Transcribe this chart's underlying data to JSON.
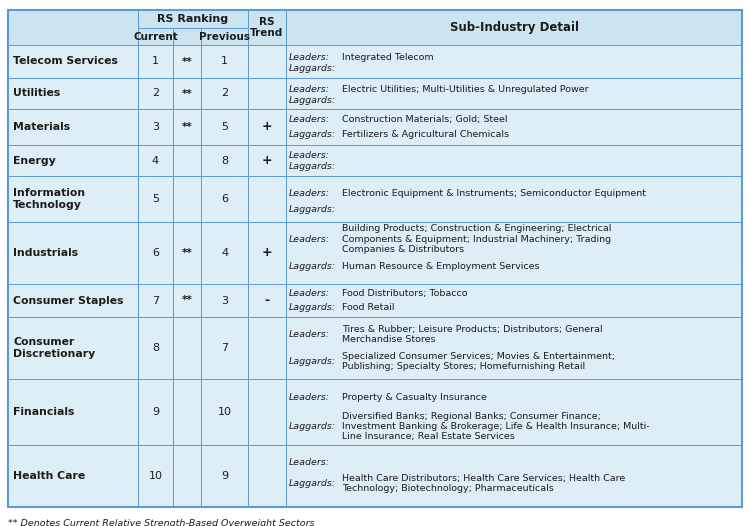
{
  "footer": "** Denotes Current Relative Strength-Based Overweight Sectors",
  "header_bg": "#cce4f0",
  "row_bg": "#ddeef7",
  "border_color": "#5b9bd5",
  "rows": [
    {
      "sector": "Telecom Services",
      "current": "1",
      "stars": "**",
      "previous": "1",
      "trend": "",
      "leaders": "Integrated Telecom",
      "laggards": ""
    },
    {
      "sector": "Utilities",
      "current": "2",
      "stars": "**",
      "previous": "2",
      "trend": "",
      "leaders": "Electric Utilities; Multi-Utilities & Unregulated Power",
      "laggards": ""
    },
    {
      "sector": "Materials",
      "current": "3",
      "stars": "**",
      "previous": "5",
      "trend": "+",
      "leaders": "Construction Materials; Gold; Steel",
      "laggards": "Fertilizers & Agricultural Chemicals"
    },
    {
      "sector": "Energy",
      "current": "4",
      "stars": "",
      "previous": "8",
      "trend": "+",
      "leaders": "",
      "laggards": ""
    },
    {
      "sector": "Information\nTechnology",
      "current": "5",
      "stars": "",
      "previous": "6",
      "trend": "",
      "leaders": "Electronic Equipment & Instruments; Semiconductor Equipment",
      "laggards": ""
    },
    {
      "sector": "Industrials",
      "current": "6",
      "stars": "**",
      "previous": "4",
      "trend": "+",
      "leaders": "Building Products; Construction & Engineering; Electrical\nComponents & Equipment; Industrial Machinery; Trading\nCompanies & Distributors",
      "laggards": "Human Resource & Employment Services"
    },
    {
      "sector": "Consumer Staples",
      "current": "7",
      "stars": "**",
      "previous": "3",
      "trend": "-",
      "leaders": "Food Distributors; Tobacco",
      "laggards": "Food Retail"
    },
    {
      "sector": "Consumer\nDiscretionary",
      "current": "8",
      "stars": "",
      "previous": "7",
      "trend": "",
      "leaders": "Tires & Rubber; Leisure Products; Distributors; General\nMerchandise Stores",
      "laggards": "Specialized Consumer Services; Movies & Entertainment;\nPublishing; Specialty Stores; Homefurnishing Retail"
    },
    {
      "sector": "Financials",
      "current": "9",
      "stars": "",
      "previous": "10",
      "trend": "",
      "leaders": "Property & Casualty Insurance",
      "laggards": "Diversified Banks; Regional Banks; Consumer Finance;\nInvestment Banking & Brokerage; Life & Health Insurance; Multi-\nLine Insurance; Real Estate Services"
    },
    {
      "sector": "Health Care",
      "current": "10",
      "stars": "",
      "previous": "9",
      "trend": "",
      "leaders": "",
      "laggards": "Health Care Distributors; Health Care Services; Health Care\nTechnology; Biotechnology; Pharmaceuticals"
    }
  ]
}
